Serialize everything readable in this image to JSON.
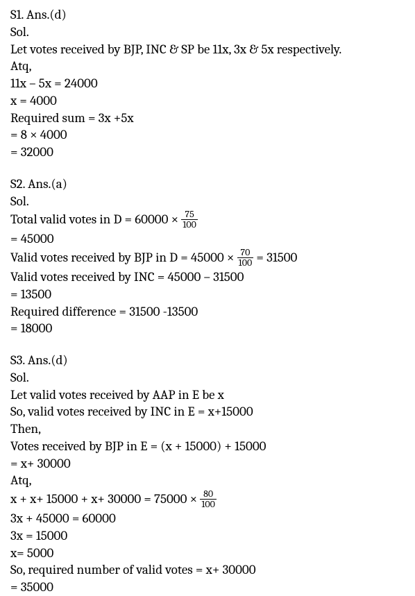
{
  "s1": {
    "header": "S1. Ans.(d)",
    "sol": "Sol.",
    "l1": "Let votes received by BJP, INC & SP be 11x, 3x & 5x respectively.",
    "l2": "Atq,",
    "l3": "11x – 5x = 24000",
    "l4": "x = 4000",
    "l5": "Required sum = 3x +5x",
    "l6": "= 8 × 4000",
    "l7": "= 32000"
  },
  "s2": {
    "header": "S2. Ans.(a)",
    "sol": "Sol.",
    "l1a": "Total valid votes in D = 60000 × ",
    "f1n": "75",
    "f1d": "100",
    "l2": "= 45000",
    "l3a": "Valid votes received by BJP in D = 45000 × ",
    "f2n": "70",
    "f2d": "100",
    "l3b": " = 31500",
    "l4": "Valid votes received by INC = 45000 – 31500",
    "l5": "= 13500",
    "l6": "Required difference = 31500 -13500",
    "l7": "= 18000"
  },
  "s3": {
    "header": "S3. Ans.(d)",
    "sol": "Sol.",
    "l1": "Let valid votes received by AAP in E be x",
    "l2": "So, valid votes received by INC in E = x+15000",
    "l3": "Then,",
    "l4": "Votes received by BJP in E = (x + 15000) + 15000",
    "l5": "= x+ 30000",
    "l6": "Atq,",
    "l7a": "x + x+ 15000 + x+ 30000 = 75000 × ",
    "f1n": "80",
    "f1d": "100",
    "l8": "3x + 45000 = 60000",
    "l9": "3x = 15000",
    "l10": "x= 5000",
    "l11": "So, required number of valid votes = x+ 30000",
    "l12": "= 35000"
  }
}
